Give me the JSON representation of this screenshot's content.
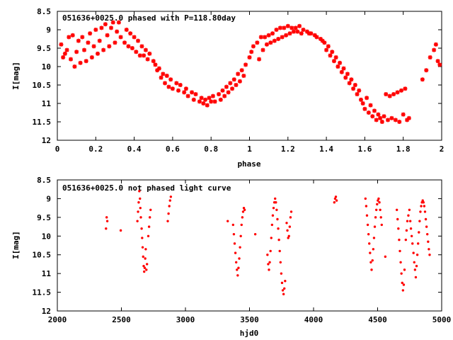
{
  "colors": {
    "marker": "#ff0000",
    "frame": "#000000",
    "background": "#ffffff"
  },
  "chart_data": [
    {
      "type": "scatter",
      "title": "051636+0025.0 phased with P=118.80day",
      "xlabel": "phase",
      "ylabel": "I[mag]",
      "xlim": [
        0,
        2
      ],
      "ylim": [
        12,
        8.5
      ],
      "y_inverted": true,
      "grid": false,
      "legend": "none",
      "x_ticks": [
        "0",
        "0.2",
        "0.4",
        "0.6",
        "0.8",
        "1",
        "1.2",
        "1.4",
        "1.6",
        "1.8",
        "2"
      ],
      "y_ticks": [
        "8.5",
        "9",
        "9.5",
        "10",
        "10.5",
        "11",
        "11.5",
        "12"
      ],
      "points": [
        [
          0.02,
          9.4
        ],
        [
          0.03,
          9.75
        ],
        [
          0.04,
          9.65
        ],
        [
          0.05,
          9.55
        ],
        [
          0.06,
          9.2
        ],
        [
          0.07,
          9.8
        ],
        [
          0.08,
          9.15
        ],
        [
          0.09,
          10.0
        ],
        [
          0.1,
          9.6
        ],
        [
          0.11,
          9.3
        ],
        [
          0.12,
          9.9
        ],
        [
          0.13,
          9.2
        ],
        [
          0.14,
          9.55
        ],
        [
          0.15,
          9.85
        ],
        [
          0.16,
          9.35
        ],
        [
          0.17,
          9.1
        ],
        [
          0.18,
          9.75
        ],
        [
          0.19,
          9.45
        ],
        [
          0.2,
          9.0
        ],
        [
          0.21,
          9.65
        ],
        [
          0.22,
          9.3
        ],
        [
          0.23,
          8.95
        ],
        [
          0.24,
          9.55
        ],
        [
          0.25,
          8.85
        ],
        [
          0.26,
          9.15
        ],
        [
          0.27,
          9.45
        ],
        [
          0.28,
          8.95
        ],
        [
          0.29,
          8.8
        ],
        [
          0.3,
          9.35
        ],
        [
          0.31,
          9.05
        ],
        [
          0.32,
          8.8
        ],
        [
          0.33,
          9.2
        ],
        [
          0.35,
          9.35
        ],
        [
          0.36,
          9.0
        ],
        [
          0.37,
          9.45
        ],
        [
          0.38,
          9.1
        ],
        [
          0.39,
          9.5
        ],
        [
          0.4,
          9.2
        ],
        [
          0.41,
          9.6
        ],
        [
          0.42,
          9.3
        ],
        [
          0.43,
          9.7
        ],
        [
          0.44,
          9.45
        ],
        [
          0.45,
          9.7
        ],
        [
          0.46,
          9.55
        ],
        [
          0.47,
          9.8
        ],
        [
          0.48,
          9.65
        ],
        [
          0.5,
          9.85
        ],
        [
          0.51,
          9.95
        ],
        [
          0.52,
          10.1
        ],
        [
          0.53,
          10.05
        ],
        [
          0.54,
          10.3
        ],
        [
          0.55,
          10.2
        ],
        [
          0.56,
          10.45
        ],
        [
          0.57,
          10.25
        ],
        [
          0.58,
          10.55
        ],
        [
          0.59,
          10.35
        ],
        [
          0.6,
          10.6
        ],
        [
          0.62,
          10.45
        ],
        [
          0.63,
          10.65
        ],
        [
          0.64,
          10.5
        ],
        [
          0.66,
          10.7
        ],
        [
          0.67,
          10.6
        ],
        [
          0.68,
          10.8
        ],
        [
          0.7,
          10.7
        ],
        [
          0.71,
          10.9
        ],
        [
          0.72,
          10.75
        ],
        [
          0.74,
          10.95
        ],
        [
          0.75,
          10.85
        ],
        [
          0.76,
          11.0
        ],
        [
          0.77,
          10.9
        ],
        [
          0.78,
          11.05
        ],
        [
          0.79,
          10.85
        ],
        [
          0.8,
          10.95
        ],
        [
          0.81,
          10.8
        ],
        [
          0.82,
          10.95
        ],
        [
          0.84,
          10.75
        ],
        [
          0.85,
          10.9
        ],
        [
          0.86,
          10.65
        ],
        [
          0.87,
          10.8
        ],
        [
          0.88,
          10.55
        ],
        [
          0.89,
          10.7
        ],
        [
          0.9,
          10.45
        ],
        [
          0.91,
          10.6
        ],
        [
          0.92,
          10.35
        ],
        [
          0.93,
          10.5
        ],
        [
          0.94,
          10.2
        ],
        [
          0.95,
          10.4
        ],
        [
          0.96,
          10.1
        ],
        [
          0.97,
          10.25
        ],
        [
          0.98,
          9.95
        ],
        [
          1.0,
          9.75
        ],
        [
          1.01,
          9.6
        ],
        [
          1.02,
          9.45
        ],
        [
          1.04,
          9.35
        ],
        [
          1.05,
          9.8
        ],
        [
          1.06,
          9.2
        ],
        [
          1.07,
          9.55
        ],
        [
          1.08,
          9.2
        ],
        [
          1.09,
          9.4
        ],
        [
          1.1,
          9.15
        ],
        [
          1.11,
          9.35
        ],
        [
          1.12,
          9.1
        ],
        [
          1.13,
          9.3
        ],
        [
          1.14,
          9.0
        ],
        [
          1.15,
          9.25
        ],
        [
          1.16,
          8.95
        ],
        [
          1.17,
          9.2
        ],
        [
          1.18,
          8.95
        ],
        [
          1.19,
          9.15
        ],
        [
          1.2,
          8.9
        ],
        [
          1.21,
          9.1
        ],
        [
          1.22,
          8.95
        ],
        [
          1.23,
          9.05
        ],
        [
          1.24,
          8.95
        ],
        [
          1.25,
          9.05
        ],
        [
          1.26,
          8.9
        ],
        [
          1.27,
          9.1
        ],
        [
          1.28,
          9.0
        ],
        [
          1.3,
          9.05
        ],
        [
          1.31,
          9.1
        ],
        [
          1.32,
          9.1
        ],
        [
          1.34,
          9.15
        ],
        [
          1.35,
          9.2
        ],
        [
          1.37,
          9.25
        ],
        [
          1.38,
          9.3
        ],
        [
          1.39,
          9.35
        ],
        [
          1.4,
          9.55
        ],
        [
          1.41,
          9.45
        ],
        [
          1.42,
          9.7
        ],
        [
          1.43,
          9.6
        ],
        [
          1.44,
          9.85
        ],
        [
          1.45,
          9.75
        ],
        [
          1.46,
          10.0
        ],
        [
          1.47,
          9.9
        ],
        [
          1.48,
          10.15
        ],
        [
          1.49,
          10.05
        ],
        [
          1.5,
          10.3
        ],
        [
          1.51,
          10.2
        ],
        [
          1.52,
          10.45
        ],
        [
          1.53,
          10.35
        ],
        [
          1.54,
          10.6
        ],
        [
          1.55,
          10.5
        ],
        [
          1.56,
          10.75
        ],
        [
          1.57,
          10.65
        ],
        [
          1.58,
          10.9
        ],
        [
          1.59,
          11.0
        ],
        [
          1.6,
          11.15
        ],
        [
          1.61,
          10.85
        ],
        [
          1.62,
          11.25
        ],
        [
          1.63,
          11.05
        ],
        [
          1.64,
          11.35
        ],
        [
          1.65,
          11.2
        ],
        [
          1.66,
          11.45
        ],
        [
          1.67,
          11.3
        ],
        [
          1.68,
          11.4
        ],
        [
          1.69,
          11.5
        ],
        [
          1.7,
          11.35
        ],
        [
          1.71,
          10.75
        ],
        [
          1.72,
          11.45
        ],
        [
          1.73,
          10.8
        ],
        [
          1.74,
          11.4
        ],
        [
          1.75,
          10.75
        ],
        [
          1.76,
          11.45
        ],
        [
          1.77,
          10.7
        ],
        [
          1.78,
          11.5
        ],
        [
          1.79,
          10.65
        ],
        [
          1.8,
          11.3
        ],
        [
          1.81,
          10.6
        ],
        [
          1.82,
          11.45
        ],
        [
          1.83,
          11.4
        ],
        [
          1.9,
          10.35
        ],
        [
          1.92,
          10.1
        ],
        [
          1.94,
          9.75
        ],
        [
          1.96,
          9.55
        ],
        [
          1.97,
          9.4
        ],
        [
          1.98,
          9.85
        ],
        [
          1.99,
          9.95
        ]
      ]
    },
    {
      "type": "scatter",
      "title": "051636+0025.0 not phased light curve",
      "xlabel": "hjd0",
      "ylabel": "I[mag]",
      "xlim": [
        2000,
        5000
      ],
      "ylim": [
        12,
        8.5
      ],
      "y_inverted": true,
      "grid": false,
      "legend": "none",
      "x_ticks": [
        "2000",
        "2500",
        "3000",
        "3500",
        "4000",
        "4500",
        "5000"
      ],
      "y_ticks": [
        "8.5",
        "9",
        "9.5",
        "10",
        "10.5",
        "11",
        "11.5",
        "12"
      ],
      "points": [
        [
          2380,
          9.8
        ],
        [
          2385,
          9.5
        ],
        [
          2390,
          9.6
        ],
        [
          2495,
          9.85
        ],
        [
          2625,
          9.6
        ],
        [
          2630,
          9.35
        ],
        [
          2635,
          9.1
        ],
        [
          2640,
          8.8
        ],
        [
          2645,
          9.0
        ],
        [
          2648,
          9.25
        ],
        [
          2652,
          9.5
        ],
        [
          2658,
          9.8
        ],
        [
          2662,
          10.05
        ],
        [
          2666,
          10.3
        ],
        [
          2670,
          10.55
        ],
        [
          2674,
          10.8
        ],
        [
          2678,
          10.95
        ],
        [
          2682,
          10.85
        ],
        [
          2686,
          10.6
        ],
        [
          2690,
          10.35
        ],
        [
          2695,
          10.9
        ],
        [
          2700,
          10.75
        ],
        [
          2710,
          10.0
        ],
        [
          2716,
          9.75
        ],
        [
          2722,
          9.5
        ],
        [
          2728,
          9.3
        ],
        [
          2862,
          9.6
        ],
        [
          2868,
          9.4
        ],
        [
          2874,
          9.2
        ],
        [
          2880,
          9.05
        ],
        [
          2886,
          8.95
        ],
        [
          3330,
          9.6
        ],
        [
          3372,
          9.7
        ],
        [
          3378,
          9.95
        ],
        [
          3384,
          10.2
        ],
        [
          3390,
          10.45
        ],
        [
          3396,
          10.7
        ],
        [
          3402,
          10.9
        ],
        [
          3408,
          11.05
        ],
        [
          3414,
          10.85
        ],
        [
          3420,
          10.6
        ],
        [
          3426,
          10.3
        ],
        [
          3432,
          10.0
        ],
        [
          3438,
          9.7
        ],
        [
          3444,
          9.5
        ],
        [
          3450,
          9.35
        ],
        [
          3456,
          9.25
        ],
        [
          3462,
          9.3
        ],
        [
          3545,
          9.95
        ],
        [
          3640,
          10.5
        ],
        [
          3646,
          10.75
        ],
        [
          3652,
          10.9
        ],
        [
          3658,
          10.7
        ],
        [
          3664,
          10.4
        ],
        [
          3670,
          10.05
        ],
        [
          3676,
          9.7
        ],
        [
          3682,
          9.45
        ],
        [
          3688,
          9.25
        ],
        [
          3694,
          9.1
        ],
        [
          3700,
          9.0
        ],
        [
          3706,
          9.1
        ],
        [
          3712,
          9.3
        ],
        [
          3718,
          9.55
        ],
        [
          3724,
          9.8
        ],
        [
          3730,
          10.1
        ],
        [
          3736,
          10.4
        ],
        [
          3742,
          10.7
        ],
        [
          3748,
          11.0
        ],
        [
          3754,
          11.25
        ],
        [
          3760,
          11.45
        ],
        [
          3766,
          11.55
        ],
        [
          3772,
          11.4
        ],
        [
          3778,
          11.2
        ],
        [
          3790,
          9.65
        ],
        [
          3796,
          9.85
        ],
        [
          3802,
          10.05
        ],
        [
          3808,
          10.0
        ],
        [
          3814,
          9.75
        ],
        [
          3820,
          9.5
        ],
        [
          3826,
          9.35
        ],
        [
          4162,
          9.1
        ],
        [
          4168,
          9.0
        ],
        [
          4174,
          8.95
        ],
        [
          4180,
          9.05
        ],
        [
          4405,
          9.0
        ],
        [
          4411,
          9.2
        ],
        [
          4417,
          9.45
        ],
        [
          4423,
          9.7
        ],
        [
          4429,
          9.95
        ],
        [
          4435,
          10.2
        ],
        [
          4441,
          10.45
        ],
        [
          4447,
          10.7
        ],
        [
          4453,
          10.9
        ],
        [
          4460,
          10.65
        ],
        [
          4466,
          10.35
        ],
        [
          4472,
          10.05
        ],
        [
          4478,
          9.75
        ],
        [
          4484,
          9.5
        ],
        [
          4490,
          9.3
        ],
        [
          4496,
          9.15
        ],
        [
          4502,
          9.05
        ],
        [
          4508,
          9.0
        ],
        [
          4514,
          9.1
        ],
        [
          4520,
          9.3
        ],
        [
          4526,
          9.5
        ],
        [
          4532,
          9.7
        ],
        [
          4560,
          10.55
        ],
        [
          4650,
          9.3
        ],
        [
          4656,
          9.55
        ],
        [
          4662,
          9.8
        ],
        [
          4668,
          10.1
        ],
        [
          4674,
          10.4
        ],
        [
          4680,
          10.7
        ],
        [
          4686,
          11.0
        ],
        [
          4692,
          11.25
        ],
        [
          4698,
          11.45
        ],
        [
          4704,
          11.3
        ],
        [
          4710,
          10.9
        ],
        [
          4720,
          10.1
        ],
        [
          4726,
          9.85
        ],
        [
          4732,
          9.6
        ],
        [
          4740,
          9.45
        ],
        [
          4748,
          9.3
        ],
        [
          4755,
          9.6
        ],
        [
          4760,
          9.8
        ],
        [
          4766,
          10.0
        ],
        [
          4772,
          10.2
        ],
        [
          4780,
          10.45
        ],
        [
          4786,
          10.7
        ],
        [
          4792,
          10.9
        ],
        [
          4798,
          11.1
        ],
        [
          4804,
          10.8
        ],
        [
          4810,
          10.5
        ],
        [
          4816,
          10.2
        ],
        [
          4822,
          9.9
        ],
        [
          4828,
          9.6
        ],
        [
          4834,
          9.35
        ],
        [
          4840,
          9.2
        ],
        [
          4846,
          9.1
        ],
        [
          4852,
          9.05
        ],
        [
          4858,
          9.1
        ],
        [
          4864,
          9.2
        ],
        [
          4870,
          9.35
        ],
        [
          4876,
          9.55
        ],
        [
          4882,
          9.75
        ],
        [
          4888,
          9.95
        ],
        [
          4894,
          10.15
        ],
        [
          4900,
          10.35
        ],
        [
          4906,
          10.5
        ]
      ]
    }
  ]
}
